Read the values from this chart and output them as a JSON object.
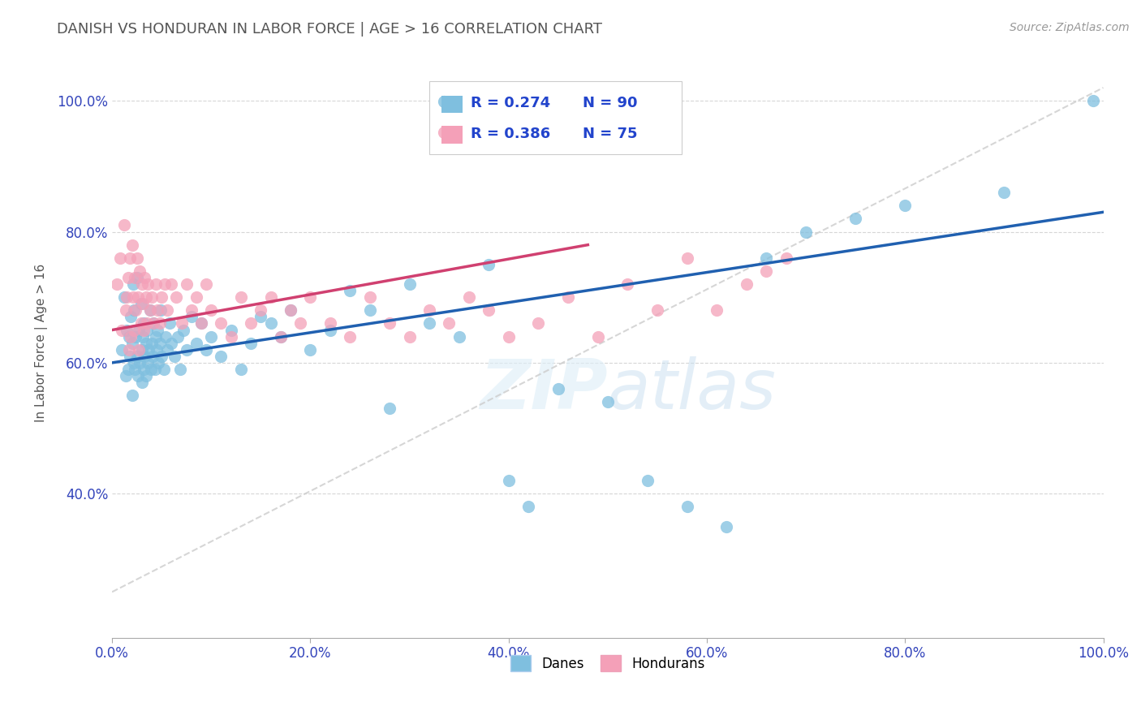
{
  "title": "DANISH VS HONDURAN IN LABOR FORCE | AGE > 16 CORRELATION CHART",
  "ylabel": "In Labor Force | Age > 16",
  "source_text": "Source: ZipAtlas.com",
  "dane_color": "#7fbfdf",
  "honduran_color": "#f4a0b8",
  "trend_dane_color": "#2060b0",
  "trend_honduran_color": "#d04070",
  "ref_line_color": "#cccccc",
  "background_color": "#ffffff",
  "grid_color": "#cccccc",
  "title_color": "#666666",
  "danes_scatter_x": [
    0.01,
    0.012,
    0.014,
    0.015,
    0.016,
    0.017,
    0.018,
    0.019,
    0.02,
    0.02,
    0.021,
    0.022,
    0.022,
    0.023,
    0.024,
    0.025,
    0.025,
    0.026,
    0.027,
    0.028,
    0.029,
    0.03,
    0.03,
    0.031,
    0.032,
    0.032,
    0.033,
    0.034,
    0.034,
    0.035,
    0.036,
    0.037,
    0.038,
    0.039,
    0.04,
    0.041,
    0.042,
    0.043,
    0.044,
    0.045,
    0.046,
    0.047,
    0.048,
    0.049,
    0.05,
    0.052,
    0.054,
    0.056,
    0.058,
    0.06,
    0.063,
    0.066,
    0.069,
    0.072,
    0.075,
    0.08,
    0.085,
    0.09,
    0.095,
    0.1,
    0.11,
    0.12,
    0.13,
    0.14,
    0.15,
    0.16,
    0.17,
    0.18,
    0.2,
    0.22,
    0.24,
    0.26,
    0.28,
    0.3,
    0.32,
    0.35,
    0.38,
    0.4,
    0.42,
    0.45,
    0.5,
    0.54,
    0.58,
    0.62,
    0.66,
    0.7,
    0.75,
    0.8,
    0.9,
    0.99
  ],
  "danes_scatter_y": [
    0.62,
    0.7,
    0.58,
    0.65,
    0.59,
    0.64,
    0.61,
    0.67,
    0.55,
    0.63,
    0.72,
    0.6,
    0.68,
    0.59,
    0.64,
    0.61,
    0.73,
    0.58,
    0.65,
    0.6,
    0.69,
    0.57,
    0.62,
    0.64,
    0.59,
    0.66,
    0.61,
    0.58,
    0.63,
    0.65,
    0.6,
    0.62,
    0.68,
    0.59,
    0.63,
    0.61,
    0.66,
    0.59,
    0.64,
    0.62,
    0.65,
    0.6,
    0.63,
    0.68,
    0.61,
    0.59,
    0.64,
    0.62,
    0.66,
    0.63,
    0.61,
    0.64,
    0.59,
    0.65,
    0.62,
    0.67,
    0.63,
    0.66,
    0.62,
    0.64,
    0.61,
    0.65,
    0.59,
    0.63,
    0.67,
    0.66,
    0.64,
    0.68,
    0.62,
    0.65,
    0.71,
    0.68,
    0.53,
    0.72,
    0.66,
    0.64,
    0.75,
    0.42,
    0.38,
    0.56,
    0.54,
    0.42,
    0.38,
    0.35,
    0.76,
    0.8,
    0.82,
    0.84,
    0.86,
    1.0
  ],
  "hondurans_scatter_x": [
    0.005,
    0.008,
    0.01,
    0.012,
    0.014,
    0.015,
    0.016,
    0.017,
    0.018,
    0.019,
    0.02,
    0.021,
    0.022,
    0.023,
    0.024,
    0.025,
    0.026,
    0.027,
    0.028,
    0.029,
    0.03,
    0.031,
    0.032,
    0.033,
    0.034,
    0.035,
    0.036,
    0.038,
    0.04,
    0.042,
    0.044,
    0.046,
    0.048,
    0.05,
    0.053,
    0.056,
    0.06,
    0.065,
    0.07,
    0.075,
    0.08,
    0.085,
    0.09,
    0.095,
    0.1,
    0.11,
    0.12,
    0.13,
    0.14,
    0.15,
    0.16,
    0.17,
    0.18,
    0.19,
    0.2,
    0.22,
    0.24,
    0.26,
    0.28,
    0.3,
    0.32,
    0.34,
    0.36,
    0.38,
    0.4,
    0.43,
    0.46,
    0.49,
    0.52,
    0.55,
    0.58,
    0.61,
    0.64,
    0.66,
    0.68
  ],
  "hondurans_scatter_y": [
    0.72,
    0.76,
    0.65,
    0.81,
    0.68,
    0.7,
    0.73,
    0.62,
    0.76,
    0.64,
    0.78,
    0.7,
    0.65,
    0.73,
    0.68,
    0.76,
    0.7,
    0.62,
    0.74,
    0.66,
    0.72,
    0.69,
    0.65,
    0.73,
    0.7,
    0.66,
    0.72,
    0.68,
    0.7,
    0.66,
    0.72,
    0.68,
    0.66,
    0.7,
    0.72,
    0.68,
    0.72,
    0.7,
    0.66,
    0.72,
    0.68,
    0.7,
    0.66,
    0.72,
    0.68,
    0.66,
    0.64,
    0.7,
    0.66,
    0.68,
    0.7,
    0.64,
    0.68,
    0.66,
    0.7,
    0.66,
    0.64,
    0.7,
    0.66,
    0.64,
    0.68,
    0.66,
    0.7,
    0.68,
    0.64,
    0.66,
    0.7,
    0.64,
    0.72,
    0.68,
    0.76,
    0.68,
    0.72,
    0.74,
    0.76
  ],
  "xlim": [
    0.0,
    1.0
  ],
  "ylim": [
    0.18,
    1.08
  ],
  "xticks": [
    0.0,
    0.2,
    0.4,
    0.6,
    0.8,
    1.0
  ],
  "yticks": [
    0.4,
    0.6,
    0.8,
    1.0
  ],
  "xtick_labels": [
    "0.0%",
    "20.0%",
    "40.0%",
    "60.0%",
    "80.0%",
    "100.0%"
  ],
  "ytick_labels": [
    "40.0%",
    "60.0%",
    "80.0%",
    "100.0%"
  ]
}
